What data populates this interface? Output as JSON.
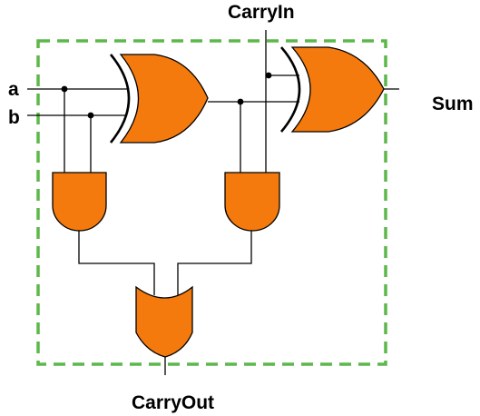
{
  "labels": {
    "input_a": "a",
    "input_b": "b",
    "carry_in": "CarryIn",
    "sum": "Sum",
    "carry_out": "CarryOut"
  },
  "colors": {
    "gate_fill": "#f47a0e",
    "boundary": "#5cb84a",
    "wire": "#000000"
  },
  "components": [
    {
      "type": "xor-gate",
      "id": "xor-1"
    },
    {
      "type": "xor-gate",
      "id": "xor-2"
    },
    {
      "type": "and-gate",
      "id": "and-1"
    },
    {
      "type": "and-gate",
      "id": "and-2"
    },
    {
      "type": "or-gate",
      "id": "or-1"
    }
  ]
}
